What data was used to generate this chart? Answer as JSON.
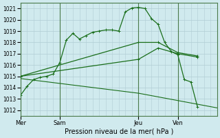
{
  "background_color": "#d0eaee",
  "grid_color": "#b0cdd4",
  "line_color": "#1a6e1a",
  "title": "Pression niveau de la mer( hPa )",
  "ylim": [
    1011.5,
    1021.5
  ],
  "yticks": [
    1012,
    1013,
    1014,
    1015,
    1016,
    1017,
    1018,
    1019,
    1020,
    1021
  ],
  "day_labels": [
    "Mer",
    "Sam",
    "Jeu",
    "Ven"
  ],
  "day_positions": [
    0,
    24,
    72,
    96
  ],
  "vline_positions": [
    0,
    24,
    72,
    96
  ],
  "xlim": [
    0,
    120
  ],
  "series1_x": [
    0,
    4,
    8,
    12,
    16,
    20,
    24,
    28,
    32,
    36,
    40,
    44,
    48,
    52,
    56,
    60,
    64,
    68,
    72,
    76,
    80,
    84,
    88,
    92,
    96,
    100,
    104,
    108
  ],
  "series1_y": [
    1013.3,
    1014.1,
    1014.7,
    1014.9,
    1015.0,
    1015.2,
    1016.2,
    1018.2,
    1018.8,
    1018.3,
    1018.6,
    1018.9,
    1019.0,
    1019.1,
    1019.1,
    1019.0,
    1020.7,
    1021.05,
    1021.1,
    1021.0,
    1020.1,
    1019.6,
    1018.0,
    1017.2,
    1016.9,
    1014.7,
    1014.5,
    1012.3
  ],
  "series2_x": [
    0,
    72,
    84,
    96,
    108
  ],
  "series2_y": [
    1015.0,
    1018.0,
    1018.0,
    1017.1,
    1016.8
  ],
  "series3_x": [
    0,
    72,
    84,
    96,
    108
  ],
  "series3_y": [
    1015.0,
    1016.5,
    1017.5,
    1017.0,
    1016.7
  ],
  "series4_x": [
    0,
    72,
    120
  ],
  "series4_y": [
    1014.8,
    1013.5,
    1012.2
  ]
}
